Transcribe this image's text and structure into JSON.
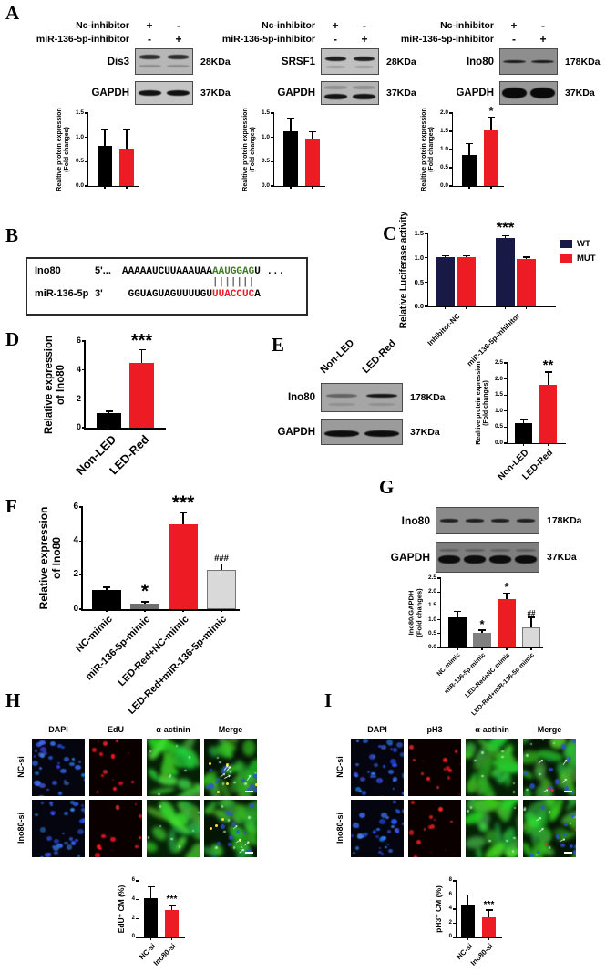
{
  "figure": {
    "background": "#ffffff"
  },
  "panels": {
    "A": {
      "label": "A",
      "condition_rows": [
        "Nc-inhibitor",
        "miR-136-5p-inhibitor"
      ],
      "subs": [
        {
          "protein": "Dis3",
          "kda": "28KDa",
          "loading": "GAPDH",
          "loading_kda": "37KDa",
          "signs_row1": [
            "+",
            "-"
          ],
          "signs_row2": [
            "-",
            "+"
          ]
        },
        {
          "protein": "SRSF1",
          "kda": "28KDa",
          "loading": "GAPDH",
          "loading_kda": "37KDa",
          "signs_row1": [
            "+",
            "-"
          ],
          "signs_row2": [
            "-",
            "+"
          ]
        },
        {
          "protein": "Ino80",
          "kda": "178KDa",
          "loading": "GAPDH",
          "loading_kda": "37KDa",
          "signs_row1": [
            "+",
            "-"
          ],
          "signs_row2": [
            "-",
            "+"
          ]
        }
      ]
    },
    "B": {
      "label": "B",
      "rows": [
        {
          "name": "Ino80",
          "prime": "5'...",
          "segments": [
            {
              "text": "AAAAAUCUUAAAUAA",
              "color": "#000000"
            },
            {
              "text": "AAUGGAG",
              "color": "#3F7A28"
            },
            {
              "text": "U ...",
              "color": "#000000"
            }
          ]
        },
        {
          "name": "miR-136-5p",
          "prime": "3'",
          "segments": [
            {
              "text": "GGUAGUAGUUUUGU",
              "color": "#000000"
            },
            {
              "text": "UUACCUC",
              "color": "#E31E24"
            },
            {
              "text": "A",
              "color": "#000000"
            }
          ]
        }
      ],
      "pipe_char": "|",
      "pipe_count": 7
    },
    "C": {
      "label": "C"
    },
    "D": {
      "label": "D"
    },
    "E": {
      "label": "E",
      "lanes": [
        "Non-LED",
        "LED-Red"
      ],
      "protein": "Ino80",
      "kda": "178KDa",
      "loading": "GAPDH",
      "loading_kda": "37KDa"
    },
    "F": {
      "label": "F"
    },
    "G": {
      "label": "G",
      "protein": "Ino80",
      "kda": "178KDa",
      "loading": "GAPDH",
      "loading_kda": "37KDa"
    },
    "H": {
      "label": "H",
      "col_headers": [
        "DAPI",
        "EdU",
        "α-actinin",
        "Merge"
      ],
      "row_labels": [
        "NC-si",
        "Ino80-si"
      ]
    },
    "I": {
      "label": "I",
      "col_headers": [
        "DAPI",
        "pH3",
        "α-actinin",
        "Merge"
      ],
      "row_labels": [
        "NC-si",
        "Ino80-si"
      ]
    }
  },
  "chart_data": {
    "a1": {
      "type": "bar",
      "ylabel": [
        "Realtive protein expression",
        "(Fold changes)"
      ],
      "ylim": [
        0,
        1.5
      ],
      "yticks": [
        "0.0",
        "0.5",
        "1.0",
        "1.5"
      ],
      "bars": [
        {
          "label": "",
          "value": 0.82,
          "err": 0.33,
          "color": "#000000",
          "sig": ""
        },
        {
          "label": "",
          "value": 0.76,
          "err": 0.38,
          "color": "#ED1C24",
          "sig": ""
        }
      ]
    },
    "a2": {
      "type": "bar",
      "ylabel": [
        "Realtive protein expression",
        "(Fold changes)"
      ],
      "ylim": [
        0,
        1.5
      ],
      "yticks": [
        "0.0",
        "0.5",
        "1.0",
        "1.5"
      ],
      "bars": [
        {
          "label": "",
          "value": 1.12,
          "err": 0.27,
          "color": "#000000",
          "sig": ""
        },
        {
          "label": "",
          "value": 0.98,
          "err": 0.13,
          "color": "#ED1C24",
          "sig": ""
        }
      ]
    },
    "a3": {
      "type": "bar",
      "ylabel": [
        "Realtive protein expression",
        "(Fold changes)"
      ],
      "ylim": [
        0,
        2.0
      ],
      "yticks": [
        "0.0",
        "0.5",
        "1.0",
        "1.5",
        "2.0"
      ],
      "bars": [
        {
          "label": "",
          "value": 0.85,
          "err": 0.3,
          "color": "#000000",
          "sig": ""
        },
        {
          "label": "",
          "value": 1.52,
          "err": 0.35,
          "color": "#ED1C24",
          "sig": "*"
        }
      ]
    },
    "c": {
      "type": "grouped-bar",
      "ylabel": [
        "Relative Luciferase activity"
      ],
      "ylim": [
        0,
        1.5
      ],
      "yticks": [
        "0.0",
        "0.5",
        "1.0",
        "1.5"
      ],
      "legend": [
        {
          "name": "WT",
          "color": "#191945"
        },
        {
          "name": "MUT",
          "color": "#ED1C24"
        }
      ],
      "groups": [
        {
          "label": "Inhibitor-NC",
          "bars": [
            {
              "value": 1.01,
              "err": 0.02,
              "color": "#191945",
              "sig": ""
            },
            {
              "value": 1.01,
              "err": 0.02,
              "color": "#ED1C24",
              "sig": ""
            }
          ]
        },
        {
          "label": "miR-136-5p-inhibitor",
          "bars": [
            {
              "value": 1.4,
              "err": 0.04,
              "color": "#191945",
              "sig": "***"
            },
            {
              "value": 0.98,
              "err": 0.02,
              "color": "#ED1C24",
              "sig": ""
            }
          ]
        }
      ]
    },
    "d": {
      "type": "bar",
      "ylabel": [
        "Relative expression",
        "of Ino80"
      ],
      "ylim": [
        0,
        6
      ],
      "yticks": [
        "0",
        "2",
        "4",
        "6"
      ],
      "bars": [
        {
          "label": "Non-LED",
          "value": 1.0,
          "err": 0.1,
          "color": "#000000",
          "sig": ""
        },
        {
          "label": "LED-Red",
          "value": 4.5,
          "err": 0.85,
          "color": "#ED1C24",
          "sig": "***"
        }
      ]
    },
    "e": {
      "type": "bar",
      "ylabel": [
        "Realtive protein expression",
        "(Fold changes)"
      ],
      "ylim": [
        0,
        2.5
      ],
      "yticks": [
        "0.0",
        "0.5",
        "1.0",
        "1.5",
        "2.0",
        "2.5"
      ],
      "bars": [
        {
          "label": "Non-LED",
          "value": 0.63,
          "err": 0.07,
          "color": "#000000",
          "sig": ""
        },
        {
          "label": "LED-Red",
          "value": 1.82,
          "err": 0.38,
          "color": "#ED1C24",
          "sig": "**"
        }
      ]
    },
    "f": {
      "type": "bar",
      "ylabel": [
        "Relative expression",
        "of Ino80"
      ],
      "ylim": [
        0,
        6
      ],
      "yticks": [
        "0",
        "2",
        "4",
        "6"
      ],
      "bars": [
        {
          "label": "NC-mimic",
          "value": 1.1,
          "err": 0.15,
          "color": "#000000",
          "sig": ""
        },
        {
          "label": "miR-136-5p-mimic",
          "value": 0.3,
          "err": 0.1,
          "color": "#6F6F6F",
          "sig": "*"
        },
        {
          "label": "LED-Red+NC-mimic",
          "value": 5.0,
          "err": 0.6,
          "color": "#ED1C24",
          "sig": "***"
        },
        {
          "label": "LED-Red+miR-136-5p-mimic",
          "value": 2.3,
          "err": 0.3,
          "color": "#D9D9D9",
          "border": "#777777",
          "sig": "###"
        }
      ]
    },
    "g": {
      "type": "bar",
      "ylabel": [
        "Ino80/GAPDH",
        "(Fold changes)"
      ],
      "ylim": [
        0,
        2.5
      ],
      "yticks": [
        "0.0",
        "0.5",
        "1.0",
        "1.5",
        "2.0",
        "2.5"
      ],
      "bars": [
        {
          "label": "NC-mimic",
          "value": 1.1,
          "err": 0.18,
          "color": "#000000",
          "sig": ""
        },
        {
          "label": "miR-136-5p-mimic",
          "value": 0.52,
          "err": 0.08,
          "color": "#808080",
          "sig": "*"
        },
        {
          "label": "LED-Red+NC-mimic",
          "value": 1.75,
          "err": 0.18,
          "color": "#ED1C24",
          "sig": "*"
        },
        {
          "label": "LED-Red+miR-136-5p-mimic",
          "value": 0.73,
          "err": 0.33,
          "color": "#D9D9D9",
          "border": "#777777",
          "sig": "##"
        }
      ]
    },
    "h": {
      "type": "bar",
      "ylabel": [
        "EdU⁺ CM (%)"
      ],
      "ylim": [
        0,
        6
      ],
      "yticks": [
        "0",
        "2",
        "4",
        "6"
      ],
      "bars": [
        {
          "label": "NC-si",
          "value": 4.2,
          "err": 1.1,
          "color": "#000000",
          "sig": ""
        },
        {
          "label": "Ino80-si",
          "value": 2.9,
          "err": 0.5,
          "color": "#ED1C24",
          "sig": "***"
        }
      ]
    },
    "i": {
      "type": "bar",
      "ylabel": [
        "pH3⁺ CM (%)"
      ],
      "ylim": [
        0,
        8
      ],
      "yticks": [
        "0",
        "2",
        "4",
        "6",
        "8"
      ],
      "bars": [
        {
          "label": "NC-si",
          "value": 4.6,
          "err": 1.3,
          "color": "#000000",
          "sig": ""
        },
        {
          "label": "Ino80-si",
          "value": 2.9,
          "err": 0.9,
          "color": "#ED1C24",
          "sig": "***"
        }
      ]
    }
  }
}
